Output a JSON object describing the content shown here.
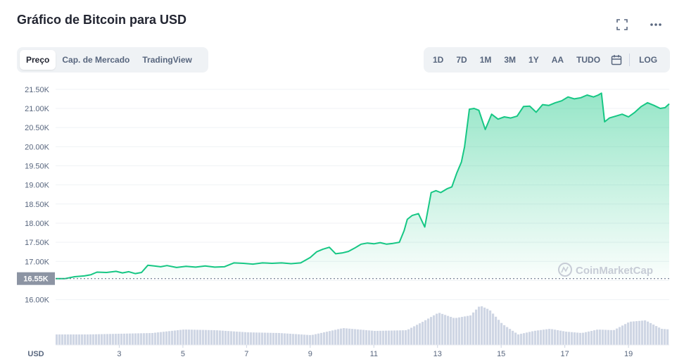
{
  "header": {
    "title": "Gráfico de Bitcoin para USD",
    "fullscreen_icon": "fullscreen-icon",
    "more_icon": "more-options-icon"
  },
  "view_tabs": [
    {
      "label": "Preço",
      "active": true
    },
    {
      "label": "Cap. de Mercado",
      "active": false
    },
    {
      "label": "TradingView",
      "active": false
    }
  ],
  "range_tabs": [
    "1D",
    "7D",
    "1M",
    "3M",
    "1Y",
    "AA",
    "TUDO"
  ],
  "calendar_icon": "calendar-icon",
  "log_label": "LOG",
  "watermark": "CoinMarketCap",
  "colors": {
    "line": "#16c784",
    "area_top": "#16c784",
    "volume": "#cfd6e4",
    "current_tag": "#8c94a3",
    "grid": "#eff2f5"
  },
  "chart_data": {
    "type": "area",
    "currency_label": "USD",
    "current_price_label": "16.55K",
    "current_price": 16550,
    "ylim": [
      15900,
      21700
    ],
    "y_ticks": [
      16000,
      16500,
      17000,
      17500,
      18000,
      18500,
      19000,
      19500,
      20000,
      20500,
      21000,
      21500
    ],
    "y_tick_labels": [
      "16.00K",
      "16.50K",
      "17.00K",
      "17.50K",
      "18.00K",
      "18.50K",
      "19.00K",
      "19.50K",
      "20.00K",
      "20.50K",
      "21.00K",
      "21.50K"
    ],
    "xlim": [
      1.0,
      20.28
    ],
    "x_ticks": [
      3,
      5,
      7,
      9,
      11,
      13,
      15,
      17,
      19
    ],
    "x_tick_labels": [
      "3",
      "5",
      "7",
      "9",
      "11",
      "13",
      "15",
      "17",
      "19"
    ],
    "price_series": {
      "x": [
        1.0,
        1.3,
        1.6,
        1.9,
        2.1,
        2.3,
        2.6,
        2.9,
        3.1,
        3.3,
        3.5,
        3.7,
        3.9,
        4.1,
        4.3,
        4.5,
        4.8,
        5.1,
        5.4,
        5.7,
        6.0,
        6.3,
        6.6,
        6.9,
        7.2,
        7.5,
        7.8,
        8.1,
        8.4,
        8.7,
        9.0,
        9.2,
        9.4,
        9.6,
        9.8,
        10.0,
        10.2,
        10.4,
        10.6,
        10.8,
        11.0,
        11.2,
        11.4,
        11.6,
        11.8,
        11.95,
        12.05,
        12.2,
        12.4,
        12.6,
        12.8,
        12.95,
        13.1,
        13.3,
        13.45,
        13.6,
        13.75,
        13.85,
        14.0,
        14.15,
        14.3,
        14.5,
        14.7,
        14.9,
        15.1,
        15.3,
        15.5,
        15.7,
        15.9,
        16.1,
        16.3,
        16.5,
        16.7,
        16.9,
        17.1,
        17.3,
        17.5,
        17.7,
        17.9,
        18.05,
        18.15,
        18.25,
        18.4,
        18.6,
        18.8,
        19.0,
        19.2,
        19.4,
        19.6,
        19.8,
        20.0,
        20.15,
        20.28
      ],
      "y": [
        16550,
        16550,
        16600,
        16620,
        16650,
        16720,
        16710,
        16740,
        16700,
        16730,
        16680,
        16710,
        16900,
        16880,
        16860,
        16890,
        16840,
        16870,
        16850,
        16880,
        16850,
        16860,
        16960,
        16950,
        16930,
        16960,
        16950,
        16960,
        16940,
        16960,
        17100,
        17250,
        17320,
        17370,
        17200,
        17220,
        17260,
        17350,
        17450,
        17480,
        17460,
        17490,
        17450,
        17470,
        17500,
        17800,
        18100,
        18200,
        18250,
        17900,
        18800,
        18850,
        18800,
        18900,
        18950,
        19300,
        19600,
        20000,
        20980,
        21000,
        20950,
        20450,
        20850,
        20720,
        20780,
        20750,
        20800,
        21050,
        21060,
        20900,
        21100,
        21080,
        21150,
        21200,
        21300,
        21250,
        21280,
        21350,
        21300,
        21350,
        21400,
        20650,
        20750,
        20800,
        20850,
        20780,
        20900,
        21050,
        21150,
        21080,
        21000,
        21020,
        21120
      ]
    },
    "volume_series": {
      "x": [
        1.0,
        2.0,
        3.0,
        4.0,
        5.0,
        6.0,
        7.0,
        8.0,
        9.0,
        10.0,
        11.0,
        12.0,
        12.5,
        13.0,
        13.5,
        14.0,
        14.3,
        14.6,
        15.0,
        15.5,
        16.0,
        16.5,
        17.0,
        17.5,
        18.0,
        18.5,
        19.0,
        19.5,
        20.0,
        20.28
      ],
      "y": [
        15,
        15,
        16,
        17,
        22,
        21,
        18,
        17,
        14,
        24,
        20,
        21,
        33,
        46,
        38,
        42,
        56,
        50,
        30,
        15,
        20,
        23,
        19,
        17,
        22,
        21,
        33,
        35,
        23,
        22
      ]
    }
  }
}
